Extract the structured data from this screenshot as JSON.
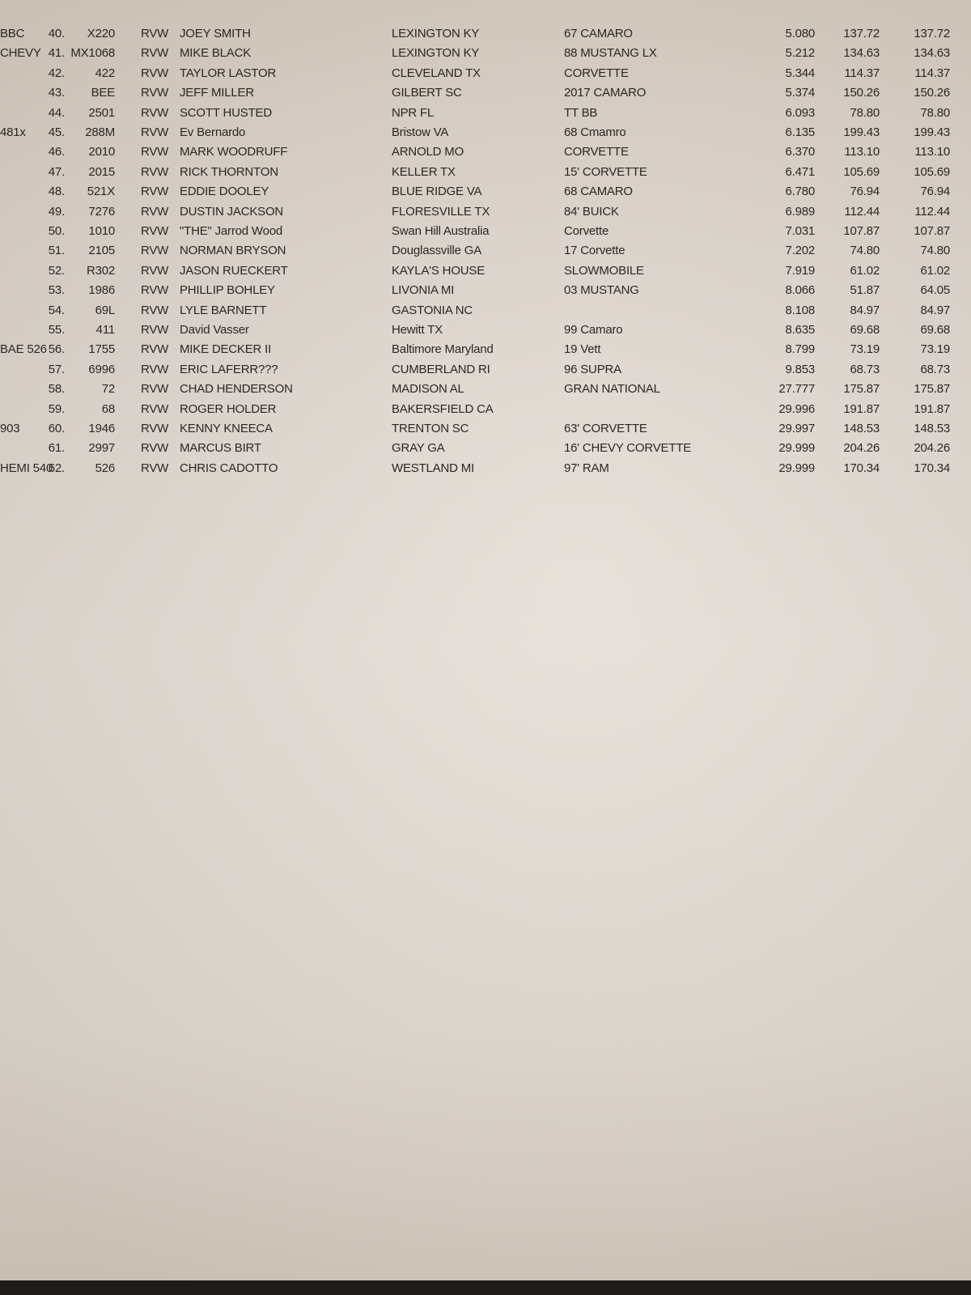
{
  "results": [
    {
      "pos": "40.",
      "num": "X220",
      "class": "RVW",
      "name": "JOEY SMITH",
      "city": "LEXINGTON KY",
      "car": "67 CAMARO",
      "engine": "BBC",
      "et": "5.080",
      "mph": "137.72",
      "best": "137.72"
    },
    {
      "pos": "41.",
      "num": "MX1068",
      "class": "RVW",
      "name": "MIKE BLACK",
      "city": "LEXINGTON KY",
      "car": "88 MUSTANG LX",
      "engine": "CHEVY",
      "et": "5.212",
      "mph": "134.63",
      "best": "134.63"
    },
    {
      "pos": "42.",
      "num": "422",
      "class": "RVW",
      "name": "TAYLOR LASTOR",
      "city": "CLEVELAND  TX",
      "car": "CORVETTE",
      "engine": "",
      "et": "5.344",
      "mph": "114.37",
      "best": "114.37"
    },
    {
      "pos": "43.",
      "num": "BEE",
      "class": "RVW",
      "name": "JEFF MILLER",
      "city": "GILBERT SC",
      "car": "2017 CAMARO",
      "engine": "",
      "et": "5.374",
      "mph": "150.26",
      "best": "150.26"
    },
    {
      "pos": "44.",
      "num": "2501",
      "class": "RVW",
      "name": "SCOTT HUSTED",
      "city": "NPR  FL",
      "car": "TT BB",
      "engine": "",
      "et": "6.093",
      "mph": "78.80",
      "best": "78.80"
    },
    {
      "pos": "45.",
      "num": "288M",
      "class": "RVW",
      "name": "Ev Bernardo",
      "city": "Bristow VA",
      "car": "68 Cmamro",
      "engine": "481x",
      "et": "6.135",
      "mph": "199.43",
      "best": "199.43"
    },
    {
      "pos": "46.",
      "num": "2010",
      "class": "RVW",
      "name": "MARK WOODRUFF",
      "city": "ARNOLD  MO",
      "car": "CORVETTE",
      "engine": "",
      "et": "6.370",
      "mph": "113.10",
      "best": "113.10"
    },
    {
      "pos": "47.",
      "num": "2015",
      "class": "RVW",
      "name": "RICK THORNTON",
      "city": "KELLER  TX",
      "car": "15' CORVETTE",
      "engine": "",
      "et": "6.471",
      "mph": "105.69",
      "best": "105.69"
    },
    {
      "pos": "48.",
      "num": "521X",
      "class": "RVW",
      "name": "EDDIE DOOLEY",
      "city": "BLUE RIDGE VA",
      "car": "68 CAMARO",
      "engine": "",
      "et": "6.780",
      "mph": "76.94",
      "best": "76.94"
    },
    {
      "pos": "49.",
      "num": "7276",
      "class": "RVW",
      "name": "DUSTIN JACKSON",
      "city": "FLORESVILLE  TX",
      "car": "84' BUICK",
      "engine": "",
      "et": "6.989",
      "mph": "112.44",
      "best": "112.44"
    },
    {
      "pos": "50.",
      "num": "1010",
      "class": "RVW",
      "name": "\"THE\" Jarrod Wood",
      "city": "Swan Hill Australia",
      "car": "Corvette",
      "engine": "",
      "et": "7.031",
      "mph": "107.87",
      "best": "107.87"
    },
    {
      "pos": "51.",
      "num": "2105",
      "class": "RVW",
      "name": "NORMAN BRYSON",
      "city": "Douglassville GA",
      "car": "17 Corvette",
      "engine": "",
      "et": "7.202",
      "mph": "74.80",
      "best": "74.80"
    },
    {
      "pos": "52.",
      "num": "R302",
      "class": "RVW",
      "name": "JASON RUECKERT",
      "city": "KAYLA'S HOUSE",
      "car": "SLOWMOBILE",
      "engine": "",
      "et": "7.919",
      "mph": "61.02",
      "best": "61.02"
    },
    {
      "pos": "53.",
      "num": "1986",
      "class": "RVW",
      "name": "PHILLIP BOHLEY",
      "city": "LIVONIA MI",
      "car": "03 MUSTANG",
      "engine": "",
      "et": "8.066",
      "mph": "51.87",
      "best": "64.05"
    },
    {
      "pos": "54.",
      "num": "69L",
      "class": "RVW",
      "name": "LYLE BARNETT",
      "city": "GASTONIA NC",
      "car": "",
      "engine": "",
      "et": "8.108",
      "mph": "84.97",
      "best": "84.97"
    },
    {
      "pos": "55.",
      "num": "411",
      "class": "RVW",
      "name": "David Vasser",
      "city": "Hewitt TX",
      "car": "99 Camaro",
      "engine": "",
      "et": "8.635",
      "mph": "69.68",
      "best": "69.68"
    },
    {
      "pos": "56.",
      "num": "1755",
      "class": "RVW",
      "name": "MIKE DECKER II",
      "city": "Baltimore Maryland",
      "car": "19 Vett",
      "engine": "BAE 526",
      "et": "8.799",
      "mph": "73.19",
      "best": "73.19"
    },
    {
      "pos": "57.",
      "num": "6996",
      "class": "RVW",
      "name": "ERIC LAFERR???",
      "city": "CUMBERLAND RI",
      "car": "96 SUPRA",
      "engine": "",
      "et": "9.853",
      "mph": "68.73",
      "best": "68.73"
    },
    {
      "pos": "58.",
      "num": "72",
      "class": "RVW",
      "name": "CHAD HENDERSON",
      "city": "MADISON AL",
      "car": "GRAN NATIONAL",
      "engine": "",
      "et": "27.777",
      "mph": "175.87",
      "best": "175.87"
    },
    {
      "pos": "59.",
      "num": "68",
      "class": "RVW",
      "name": "ROGER HOLDER",
      "city": "BAKERSFIELD  CA",
      "car": "",
      "engine": "",
      "et": "29.996",
      "mph": "191.87",
      "best": "191.87"
    },
    {
      "pos": "60.",
      "num": "1946",
      "class": "RVW",
      "name": "KENNY KNEECA",
      "city": "TRENTON  SC",
      "car": "63' CORVETTE",
      "engine": "903",
      "et": "29.997",
      "mph": "148.53",
      "best": "148.53"
    },
    {
      "pos": "61.",
      "num": "2997",
      "class": "RVW",
      "name": "MARCUS BIRT",
      "city": "GRAY  GA",
      "car": "16' CHEVY CORVETTE",
      "engine": "",
      "et": "29.999",
      "mph": "204.26",
      "best": "204.26"
    },
    {
      "pos": "62.",
      "num": "526",
      "class": "RVW",
      "name": "CHRIS CADOTTO",
      "city": "WESTLAND  MI",
      "car": "97' RAM",
      "engine": "HEMI 540",
      "et": "29.999",
      "mph": "170.34",
      "best": "170.34"
    }
  ]
}
